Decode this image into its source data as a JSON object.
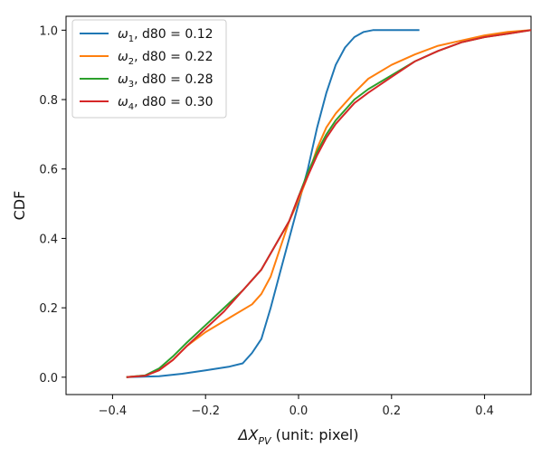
{
  "chart_data": {
    "type": "line",
    "xlabel_main": "ΔX",
    "xlabel_sub": "PV",
    "xlabel_rest": " (unit: pixel)",
    "ylabel": "CDF",
    "xlim": [
      -0.5,
      0.5
    ],
    "ylim": [
      -0.05,
      1.04
    ],
    "xticks": [
      -0.4,
      -0.2,
      0.0,
      0.2,
      0.4
    ],
    "xtick_labels": [
      "−0.4",
      "−0.2",
      "0.0",
      "0.2",
      "0.4"
    ],
    "yticks": [
      0.0,
      0.2,
      0.4,
      0.6,
      0.8,
      1.0
    ],
    "ytick_labels": [
      "0.0",
      "0.2",
      "0.4",
      "0.6",
      "0.8",
      "1.0"
    ],
    "grid": false,
    "legend_position": "top-left",
    "series": [
      {
        "name": "ω",
        "name_sub": "1",
        "name_rest": ", d80 = 0.12",
        "color": "#1f77b4",
        "x": [
          -0.37,
          -0.3,
          -0.25,
          -0.2,
          -0.15,
          -0.12,
          -0.1,
          -0.08,
          -0.06,
          -0.04,
          -0.02,
          0.0,
          0.02,
          0.04,
          0.06,
          0.08,
          0.1,
          0.12,
          0.14,
          0.16,
          0.2,
          0.26
        ],
        "y": [
          0.0,
          0.003,
          0.01,
          0.02,
          0.03,
          0.04,
          0.07,
          0.11,
          0.2,
          0.3,
          0.4,
          0.5,
          0.6,
          0.72,
          0.82,
          0.9,
          0.95,
          0.98,
          0.995,
          1.0,
          1.0,
          1.0
        ]
      },
      {
        "name": "ω",
        "name_sub": "2",
        "name_rest": ", d80 = 0.22",
        "color": "#ff7f0e",
        "x": [
          -0.37,
          -0.33,
          -0.3,
          -0.27,
          -0.24,
          -0.2,
          -0.15,
          -0.1,
          -0.08,
          -0.06,
          -0.04,
          -0.02,
          0.0,
          0.02,
          0.04,
          0.06,
          0.08,
          0.1,
          0.12,
          0.15,
          0.2,
          0.25,
          0.3,
          0.35,
          0.4,
          0.45,
          0.5
        ],
        "y": [
          0.0,
          0.005,
          0.02,
          0.05,
          0.09,
          0.13,
          0.17,
          0.21,
          0.24,
          0.29,
          0.37,
          0.45,
          0.51,
          0.58,
          0.66,
          0.72,
          0.76,
          0.79,
          0.82,
          0.86,
          0.9,
          0.93,
          0.955,
          0.97,
          0.985,
          0.995,
          1.0
        ]
      },
      {
        "name": "ω",
        "name_sub": "3",
        "name_rest": ", d80 = 0.28",
        "color": "#2ca02c",
        "x": [
          -0.37,
          -0.33,
          -0.3,
          -0.27,
          -0.24,
          -0.2,
          -0.16,
          -0.12,
          -0.08,
          -0.05,
          -0.02,
          0.0,
          0.02,
          0.04,
          0.06,
          0.08,
          0.1,
          0.12,
          0.15,
          0.2,
          0.25,
          0.3,
          0.35,
          0.4,
          0.45,
          0.5
        ],
        "y": [
          0.0,
          0.005,
          0.025,
          0.06,
          0.1,
          0.15,
          0.2,
          0.25,
          0.31,
          0.38,
          0.45,
          0.52,
          0.59,
          0.65,
          0.7,
          0.74,
          0.77,
          0.8,
          0.83,
          0.87,
          0.91,
          0.94,
          0.965,
          0.98,
          0.99,
          1.0
        ]
      },
      {
        "name": "ω",
        "name_sub": "4",
        "name_rest": ", d80 = 0.30",
        "color": "#d62728",
        "x": [
          -0.37,
          -0.33,
          -0.3,
          -0.27,
          -0.24,
          -0.2,
          -0.16,
          -0.12,
          -0.08,
          -0.05,
          -0.02,
          0.0,
          0.02,
          0.04,
          0.06,
          0.08,
          0.1,
          0.12,
          0.15,
          0.2,
          0.25,
          0.3,
          0.35,
          0.4,
          0.45,
          0.5
        ],
        "y": [
          0.0,
          0.004,
          0.02,
          0.05,
          0.09,
          0.14,
          0.19,
          0.25,
          0.31,
          0.38,
          0.45,
          0.52,
          0.58,
          0.64,
          0.69,
          0.73,
          0.76,
          0.79,
          0.82,
          0.865,
          0.91,
          0.94,
          0.965,
          0.98,
          0.99,
          1.0
        ]
      }
    ]
  }
}
